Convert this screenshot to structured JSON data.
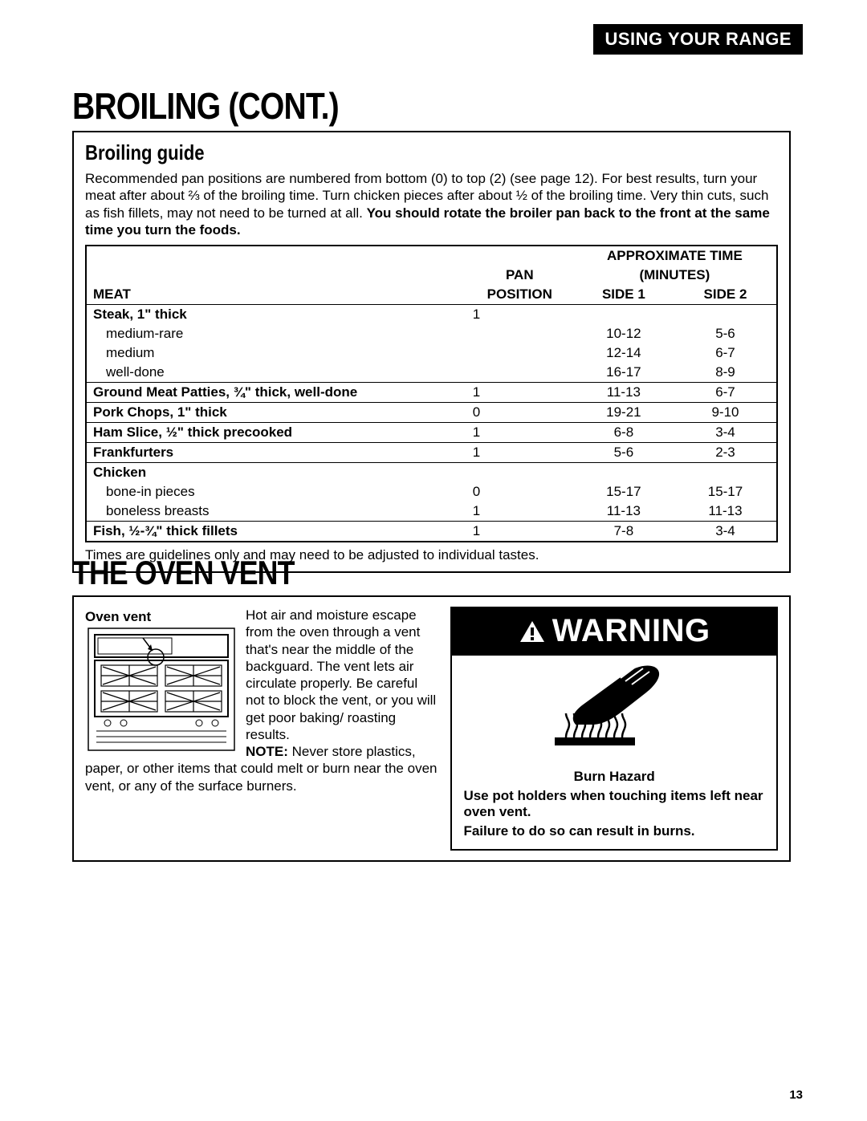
{
  "header": {
    "label": "USING YOUR RANGE"
  },
  "broiling": {
    "title": "BROILING (CONT.)",
    "subheading": "Broiling guide",
    "intro_plain": "Recommended pan positions are numbered from bottom (0) to top (2) (see page 12). For best results, turn your meat after about ⅔ of the broiling time. Turn chicken pieces after about ½ of the broiling time. Very thin cuts, such as fish fillets, may not need to be turned at all. ",
    "intro_bold": "You should rotate the broiler pan back to the front at the same time you turn the foods.",
    "table": {
      "headers": {
        "meat": "MEAT",
        "pan": "PAN",
        "position": "POSITION",
        "approx_hdr": "APPROXIMATE TIME",
        "minutes": "(MINUTES)",
        "side1": "SIDE 1",
        "side2": "SIDE 2"
      },
      "groups": [
        {
          "label": "Steak, 1\" thick",
          "pan": "1",
          "sub": [
            {
              "label": "medium-rare",
              "s1": "10-12",
              "s2": "5-6"
            },
            {
              "label": "medium",
              "s1": "12-14",
              "s2": "6-7"
            },
            {
              "label": "well-done",
              "s1": "16-17",
              "s2": "8-9"
            }
          ]
        },
        {
          "label": "Ground Meat Patties, ¾\" thick, well-done",
          "pan": "1",
          "s1": "11-13",
          "s2": "6-7"
        },
        {
          "label": "Pork Chops, 1\" thick",
          "pan": "0",
          "s1": "19-21",
          "s2": "9-10"
        },
        {
          "label": "Ham Slice, ½\" thick precooked",
          "pan": "1",
          "s1": "6-8",
          "s2": "3-4"
        },
        {
          "label": "Frankfurters",
          "pan": "1",
          "s1": "5-6",
          "s2": "2-3"
        },
        {
          "label": "Chicken",
          "pan": "",
          "sub": [
            {
              "label": "bone-in pieces",
              "pan": "0",
              "s1": "15-17",
              "s2": "15-17"
            },
            {
              "label": "boneless breasts",
              "pan": "1",
              "s1": "11-13",
              "s2": "11-13"
            }
          ]
        },
        {
          "label": "Fish, ½-¾\" thick fillets",
          "pan": "1",
          "s1": "7-8",
          "s2": "3-4",
          "last": true
        }
      ]
    },
    "footnote": "Times are guidelines only and may need to be adjusted to individual tastes."
  },
  "ovenvent": {
    "title": "THE OVEN VENT",
    "fig_label": "Oven vent",
    "para1": "Hot air and moisture escape from the oven through a vent that's near the middle of the backguard. The vent lets air circulate properly. Be careful not to block the vent, or you will get poor baking/ roasting results.",
    "note_label": "NOTE:",
    "note_text": " Never store plastics, paper, or other items that could melt or burn near the oven vent, or any of the surface burners.",
    "warning": {
      "title": "WARNING",
      "hazard": "Burn Hazard",
      "line1": "Use pot holders when touching items left near oven vent.",
      "line2": "Failure to do so can result in burns."
    }
  },
  "page": "13"
}
